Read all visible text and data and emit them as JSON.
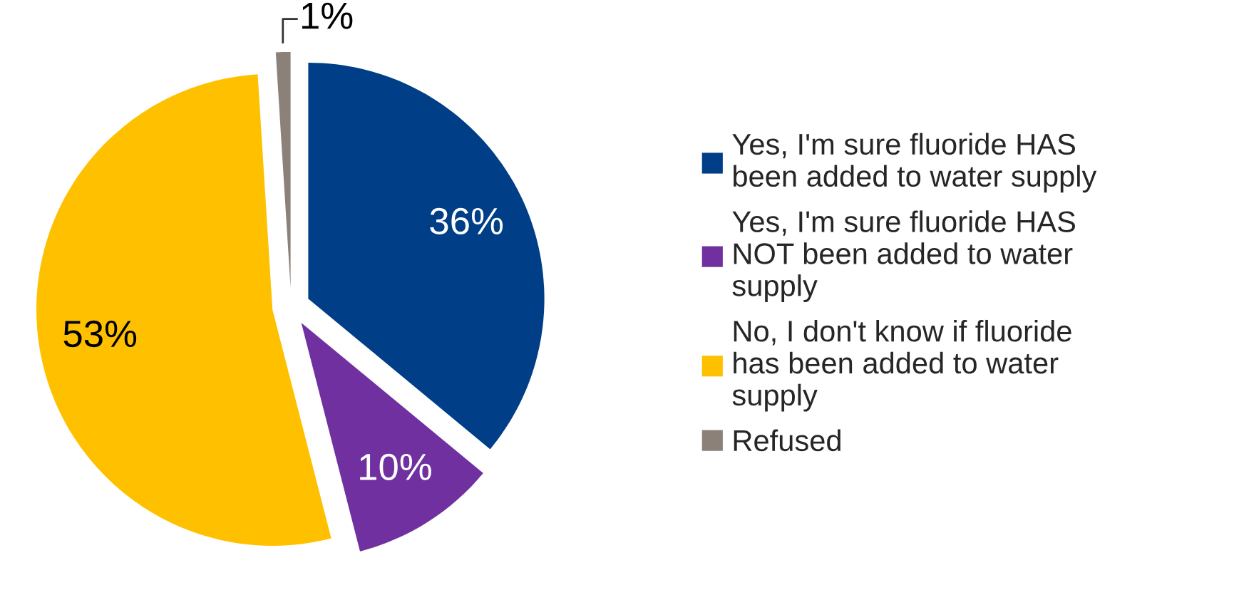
{
  "chart_data": {
    "type": "pie",
    "categories": [
      "Yes, I'm sure fluoride HAS been added to water supply",
      "Yes, I'm sure fluoride HAS NOT been added to water supply",
      "No, I don't know if fluoride has been added to water supply",
      "Refused"
    ],
    "values": [
      36,
      10,
      53,
      1
    ],
    "colors": [
      "#003f87",
      "#7030a0",
      "#ffc000",
      "#8c8179"
    ],
    "value_labels": [
      "36%",
      "10%",
      "53%",
      "1%"
    ],
    "legend": "right"
  }
}
